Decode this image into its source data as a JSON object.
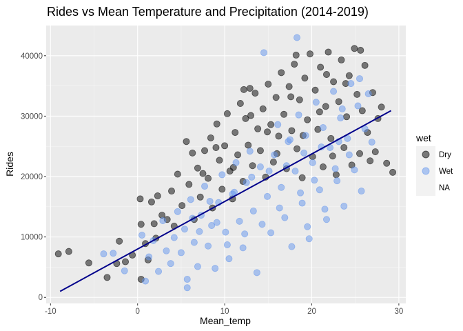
{
  "chart_data": {
    "type": "scatter",
    "title": "Rides vs Mean Temperature and Precipitation (2014-2019)",
    "xlabel": "Mean_temp",
    "ylabel": "Rides",
    "xlim": [
      -10.5,
      30.8
    ],
    "ylim": [
      -1000,
      45000
    ],
    "x_ticks": [
      -10,
      0,
      10,
      20,
      30
    ],
    "x_tick_labels": [
      "-10",
      "0",
      "10",
      "20",
      "30"
    ],
    "y_ticks": [
      0,
      10000,
      20000,
      30000,
      40000
    ],
    "y_tick_labels": [
      "0",
      "10000",
      "20000",
      "30000",
      "40000"
    ],
    "grid": true,
    "legend": {
      "title": "wet",
      "placement": "right",
      "entries": [
        {
          "label": "Dry",
          "color": "#000000"
        },
        {
          "label": "Wet",
          "color": "#6495ed"
        },
        {
          "label": "NA",
          "color": null
        }
      ]
    },
    "series": [
      {
        "name": "Dry",
        "color": "#000000",
        "opacity": 0.5,
        "points": [
          [
            -9.1,
            7200
          ],
          [
            -7.9,
            7600
          ],
          [
            -5.6,
            5700
          ],
          [
            -3.5,
            3300
          ],
          [
            -2.4,
            5600
          ],
          [
            -2.1,
            9300
          ],
          [
            -1.4,
            5900
          ],
          [
            -0.6,
            7000
          ],
          [
            0.3,
            16300
          ],
          [
            0.4,
            12100
          ],
          [
            0.4,
            3000
          ],
          [
            0.9,
            8900
          ],
          [
            1.2,
            6200
          ],
          [
            1.6,
            15800
          ],
          [
            1.9,
            12200
          ],
          [
            2.1,
            9800
          ],
          [
            2.3,
            16800
          ],
          [
            2.8,
            13600
          ],
          [
            3.4,
            12900
          ],
          [
            3.9,
            17600
          ],
          [
            4.2,
            11800
          ],
          [
            4.6,
            20400
          ],
          [
            5.1,
            15200
          ],
          [
            5.6,
            25800
          ],
          [
            5.9,
            18700
          ],
          [
            6.3,
            23900
          ],
          [
            6.5,
            12900
          ],
          [
            6.9,
            21400
          ],
          [
            7.2,
            16600
          ],
          [
            7.7,
            24300
          ],
          [
            8.1,
            19700
          ],
          [
            8.4,
            26400
          ],
          [
            8.6,
            14800
          ],
          [
            9.1,
            28700
          ],
          [
            9.4,
            22700
          ],
          [
            9.7,
            17900
          ],
          [
            10.0,
            25100
          ],
          [
            10.3,
            30400
          ],
          [
            10.6,
            20900
          ],
          [
            10.9,
            16300
          ],
          [
            11.2,
            27300
          ],
          [
            11.5,
            23600
          ],
          [
            11.8,
            32100
          ],
          [
            12.1,
            19200
          ],
          [
            12.4,
            29600
          ],
          [
            12.7,
            25200
          ],
          [
            12.9,
            34600
          ],
          [
            13.2,
            21800
          ],
          [
            13.5,
            33800
          ],
          [
            13.8,
            27900
          ],
          [
            14.1,
            24300
          ],
          [
            14.4,
            31200
          ],
          [
            14.7,
            19900
          ],
          [
            15.0,
            35300
          ],
          [
            15.3,
            28600
          ],
          [
            15.6,
            22400
          ],
          [
            15.9,
            33100
          ],
          [
            16.2,
            26700
          ],
          [
            16.5,
            37200
          ],
          [
            16.8,
            30300
          ],
          [
            17.1,
            21300
          ],
          [
            17.4,
            34900
          ],
          [
            17.7,
            27600
          ],
          [
            18.0,
            38600
          ],
          [
            18.3,
            24600
          ],
          [
            18.6,
            32700
          ],
          [
            18.9,
            19800
          ],
          [
            19.2,
            36300
          ],
          [
            19.5,
            29400
          ],
          [
            19.8,
            40300
          ],
          [
            20.1,
            23300
          ],
          [
            20.4,
            34300
          ],
          [
            20.7,
            27800
          ],
          [
            21.0,
            38100
          ],
          [
            21.3,
            21600
          ],
          [
            21.6,
            31600
          ],
          [
            21.9,
            40600
          ],
          [
            22.2,
            26300
          ],
          [
            22.5,
            35700
          ],
          [
            22.8,
            20300
          ],
          [
            23.1,
            32400
          ],
          [
            23.4,
            39300
          ],
          [
            23.7,
            24800
          ],
          [
            24.0,
            29900
          ],
          [
            24.3,
            36700
          ],
          [
            24.6,
            21900
          ],
          [
            24.9,
            41200
          ],
          [
            25.2,
            33600
          ],
          [
            25.5,
            23800
          ],
          [
            25.8,
            30900
          ],
          [
            26.1,
            38400
          ],
          [
            26.4,
            27300
          ],
          [
            26.7,
            22600
          ],
          [
            27.0,
            33900
          ],
          [
            27.3,
            24100
          ],
          [
            27.6,
            29600
          ],
          [
            28.0,
            31500
          ],
          [
            28.6,
            22200
          ],
          [
            29.3,
            20700
          ],
          [
            19.0,
            26800
          ],
          [
            16.0,
            23800
          ],
          [
            13.0,
            30100
          ],
          [
            11.0,
            21500
          ],
          [
            9.0,
            24800
          ],
          [
            7.5,
            20500
          ],
          [
            22.4,
            23400
          ],
          [
            20.9,
            30700
          ],
          [
            17.6,
            33200
          ],
          [
            23.9,
            35400
          ],
          [
            25.6,
            40900
          ],
          [
            21.7,
            36900
          ],
          [
            18.2,
            40100
          ],
          [
            14.9,
            27400
          ],
          [
            12.2,
            34400
          ]
        ]
      },
      {
        "name": "Wet",
        "color": "#6495ed",
        "opacity": 0.5,
        "points": [
          [
            -3.9,
            7200
          ],
          [
            -2.8,
            7300
          ],
          [
            -1.5,
            4400
          ],
          [
            0.5,
            10300
          ],
          [
            0.9,
            2700
          ],
          [
            1.3,
            6700
          ],
          [
            1.8,
            9400
          ],
          [
            2.4,
            4300
          ],
          [
            2.9,
            12700
          ],
          [
            3.3,
            7700
          ],
          [
            3.8,
            5600
          ],
          [
            4.2,
            9900
          ],
          [
            4.6,
            14200
          ],
          [
            5.0,
            7400
          ],
          [
            5.4,
            11300
          ],
          [
            5.7,
            3000
          ],
          [
            5.7,
            1600
          ],
          [
            6.1,
            16200
          ],
          [
            6.5,
            9100
          ],
          [
            6.9,
            5100
          ],
          [
            7.3,
            13600
          ],
          [
            7.7,
            18400
          ],
          [
            8.1,
            8500
          ],
          [
            8.5,
            11900
          ],
          [
            8.9,
            4800
          ],
          [
            9.3,
            15700
          ],
          [
            9.7,
            20300
          ],
          [
            10.1,
            10800
          ],
          [
            10.5,
            6400
          ],
          [
            10.9,
            17100
          ],
          [
            11.3,
            22300
          ],
          [
            11.7,
            12600
          ],
          [
            12.1,
            8200
          ],
          [
            12.5,
            19000
          ],
          [
            12.9,
            24200
          ],
          [
            13.3,
            14300
          ],
          [
            13.7,
            4100
          ],
          [
            14.1,
            21600
          ],
          [
            14.5,
            40500
          ],
          [
            14.9,
            16700
          ],
          [
            15.3,
            10700
          ],
          [
            15.7,
            23600
          ],
          [
            16.1,
            28600
          ],
          [
            16.5,
            18200
          ],
          [
            16.9,
            13200
          ],
          [
            17.3,
            25800
          ],
          [
            17.7,
            8400
          ],
          [
            18.1,
            20900
          ],
          [
            18.3,
            43000
          ],
          [
            18.5,
            30200
          ],
          [
            18.9,
            15600
          ],
          [
            19.3,
            26800
          ],
          [
            19.7,
            9700
          ],
          [
            20.1,
            22300
          ],
          [
            20.5,
            32300
          ],
          [
            20.9,
            17800
          ],
          [
            21.3,
            28100
          ],
          [
            21.7,
            12900
          ],
          [
            22.1,
            24800
          ],
          [
            22.5,
            34100
          ],
          [
            22.9,
            19300
          ],
          [
            23.3,
            29700
          ],
          [
            23.7,
            15100
          ],
          [
            24.1,
            26300
          ],
          [
            24.5,
            35400
          ],
          [
            24.9,
            21100
          ],
          [
            25.3,
            31700
          ],
          [
            25.7,
            17600
          ],
          [
            26.1,
            27900
          ],
          [
            26.5,
            33700
          ],
          [
            26.9,
            25700
          ],
          [
            11.1,
            17400
          ],
          [
            13.1,
            19900
          ],
          [
            15.1,
            20900
          ],
          [
            17.1,
            21800
          ],
          [
            19.1,
            23900
          ],
          [
            21.1,
            24900
          ],
          [
            23.1,
            25800
          ],
          [
            9.1,
            12400
          ],
          [
            7.1,
            10900
          ],
          [
            16.3,
            14800
          ],
          [
            18.7,
            17300
          ],
          [
            20.3,
            19400
          ],
          [
            22.7,
            21300
          ],
          [
            24.3,
            23600
          ],
          [
            14.3,
            12100
          ],
          [
            12.3,
            10500
          ],
          [
            10.3,
            8700
          ],
          [
            19.5,
            11700
          ],
          [
            21.5,
            14600
          ],
          [
            6.3,
            13100
          ],
          [
            8.3,
            15900
          ],
          [
            17.5,
            26100
          ],
          [
            23.5,
            31200
          ],
          [
            25.5,
            36200
          ]
        ]
      }
    ],
    "fit_line": {
      "color": "#00008b",
      "points": [
        [
          -8.9,
          1000
        ],
        [
          29.1,
          30900
        ]
      ]
    }
  }
}
